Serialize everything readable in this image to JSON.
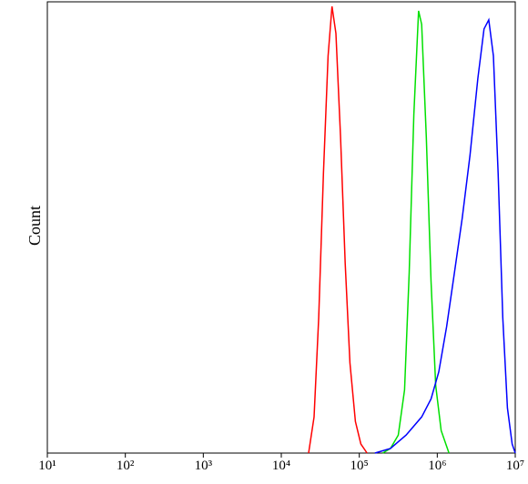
{
  "chart_data": {
    "type": "line",
    "y_label": "Count",
    "x_log": true,
    "xlim": [
      10,
      10000000
    ],
    "ylim": [
      0,
      100
    ],
    "xticks": [
      {
        "value": 10,
        "label": "10¹"
      },
      {
        "value": 100,
        "label": "10²"
      },
      {
        "value": 1000,
        "label": "10³"
      },
      {
        "value": 10000,
        "label": "10⁴"
      },
      {
        "value": 100000,
        "label": "10⁵"
      },
      {
        "value": 1000000,
        "label": "10⁶"
      },
      {
        "value": 10000000,
        "label": "10⁷"
      }
    ],
    "series": [
      {
        "color": "#ff0000",
        "x": [
          22387,
          26303,
          30200,
          34674,
          39811,
          44668,
          50119,
          57544,
          66069,
          75858,
          89125,
          104713,
          125893
        ],
        "values": [
          0,
          8,
          30,
          62,
          88,
          99,
          93,
          70,
          42,
          20,
          7,
          2,
          0
        ]
      },
      {
        "color": "#00e000",
        "x": [
          199526,
          251189,
          316228,
          380189,
          436516,
          501187,
          575440,
          630957,
          724436,
          831764,
          954993,
          1122018,
          1412538
        ],
        "values": [
          0,
          1,
          4,
          14,
          40,
          75,
          98,
          95,
          70,
          38,
          15,
          5,
          0
        ]
      },
      {
        "color": "#0000ff",
        "x": [
          158489,
          251189,
          398107,
          630957,
          831764,
          1047129,
          1318257,
          1659587,
          2089296,
          2630268,
          3311311,
          3981072,
          4570882,
          5248075,
          6025596,
          6918310,
          7943282,
          9120108,
          10000000
        ],
        "values": [
          0,
          1,
          4,
          8,
          12,
          18,
          28,
          40,
          52,
          66,
          83,
          94,
          96,
          88,
          62,
          30,
          10,
          2,
          0
        ]
      }
    ]
  }
}
